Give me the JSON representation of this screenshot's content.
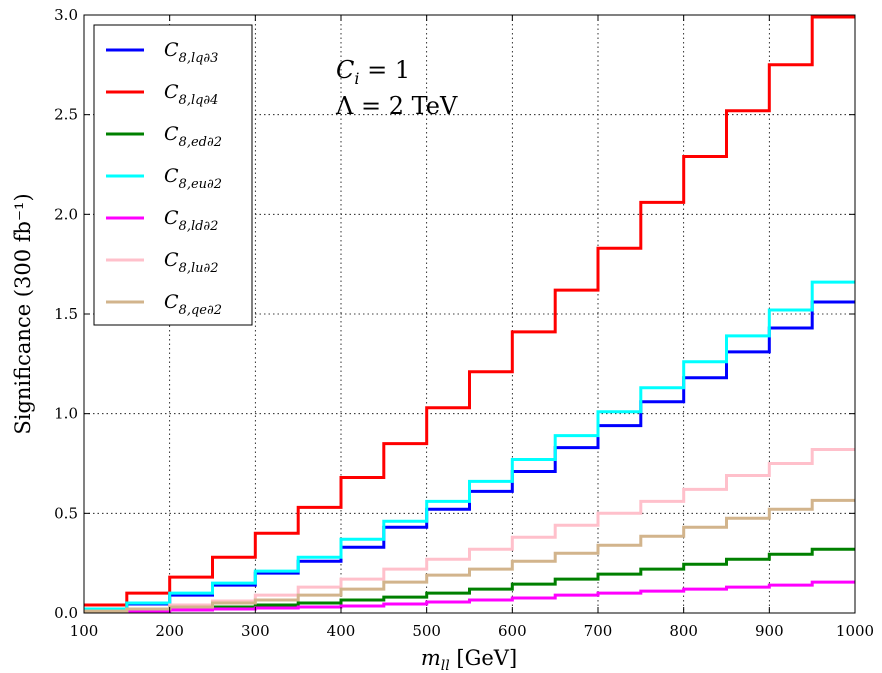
{
  "chart_data": {
    "type": "line",
    "step": "post",
    "xlabel": "m_ll [GeV]",
    "xlabel_main": "m",
    "xlabel_sub": "ll",
    "xlabel_unit": " [GeV]",
    "ylabel": "Significance (300 fb⁻¹)",
    "xlim": [
      100,
      1000
    ],
    "ylim": [
      0,
      3.0
    ],
    "xticks": [
      "100",
      "200",
      "300",
      "400",
      "500",
      "600",
      "700",
      "800",
      "900",
      "1000"
    ],
    "yticks": [
      "0.0",
      "0.5",
      "1.0",
      "1.5",
      "2.0",
      "2.5",
      "3.0"
    ],
    "grid": true,
    "legend_position": "top-left",
    "annotations": [
      "C_i = 1",
      "Λ = 2 TeV"
    ],
    "annotation_1_main": "C",
    "annotation_1_sub": "i",
    "annotation_1_rest": " = 1",
    "annotation_2": "Λ = 2 TeV",
    "bin_edges": [
      100,
      150,
      200,
      250,
      300,
      350,
      400,
      450,
      500,
      550,
      600,
      650,
      700,
      750,
      800,
      850,
      900,
      950,
      1000
    ],
    "series": [
      {
        "name": "C_8,lq∂3",
        "main": "C",
        "sub": "8,lq∂3",
        "color": "#0000ff",
        "values": [
          0.02,
          0.045,
          0.09,
          0.14,
          0.2,
          0.26,
          0.33,
          0.43,
          0.52,
          0.61,
          0.71,
          0.83,
          0.94,
          1.06,
          1.18,
          1.31,
          1.43,
          1.56
        ]
      },
      {
        "name": "C_8,lq∂4",
        "main": "C",
        "sub": "8,lq∂4",
        "color": "#ff0000",
        "values": [
          0.04,
          0.1,
          0.18,
          0.28,
          0.4,
          0.53,
          0.68,
          0.85,
          1.03,
          1.21,
          1.41,
          1.62,
          1.83,
          2.06,
          2.29,
          2.52,
          2.75,
          2.99
        ]
      },
      {
        "name": "C_8,ed∂2",
        "main": "C",
        "sub": "8,ed∂2",
        "color": "#008000",
        "values": [
          0.01,
          0.015,
          0.02,
          0.03,
          0.04,
          0.05,
          0.065,
          0.08,
          0.1,
          0.12,
          0.145,
          0.17,
          0.195,
          0.22,
          0.245,
          0.27,
          0.295,
          0.32
        ]
      },
      {
        "name": "C_8,eu∂2",
        "main": "C",
        "sub": "8,eu∂2",
        "color": "#00ffff",
        "values": [
          0.02,
          0.05,
          0.1,
          0.15,
          0.21,
          0.28,
          0.37,
          0.46,
          0.56,
          0.66,
          0.77,
          0.89,
          1.01,
          1.13,
          1.26,
          1.39,
          1.52,
          1.66
        ]
      },
      {
        "name": "C_8,ld∂2",
        "main": "C",
        "sub": "8,ld∂2",
        "color": "#ff00ff",
        "values": [
          0.005,
          0.01,
          0.015,
          0.02,
          0.025,
          0.03,
          0.035,
          0.045,
          0.055,
          0.065,
          0.075,
          0.09,
          0.1,
          0.11,
          0.12,
          0.13,
          0.14,
          0.155
        ]
      },
      {
        "name": "C_8,lu∂2",
        "main": "C",
        "sub": "8,lu∂2",
        "color": "#ffc0cb",
        "values": [
          0.01,
          0.02,
          0.04,
          0.06,
          0.09,
          0.13,
          0.17,
          0.22,
          0.27,
          0.32,
          0.38,
          0.44,
          0.5,
          0.56,
          0.62,
          0.69,
          0.75,
          0.82
        ]
      },
      {
        "name": "C_8,qe∂2",
        "main": "C",
        "sub": "8,qe∂2",
        "color": "#d2b48c",
        "values": [
          0.01,
          0.02,
          0.03,
          0.05,
          0.065,
          0.09,
          0.12,
          0.155,
          0.19,
          0.22,
          0.26,
          0.3,
          0.34,
          0.385,
          0.43,
          0.475,
          0.52,
          0.565
        ]
      }
    ]
  }
}
